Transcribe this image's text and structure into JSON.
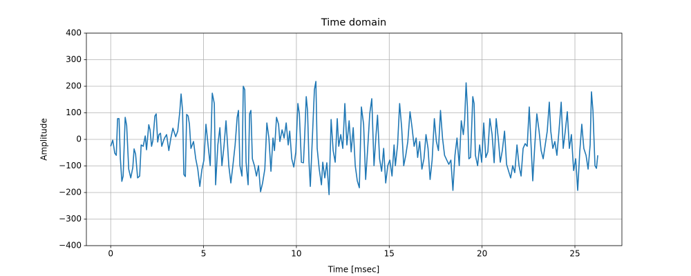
{
  "chart_data": {
    "type": "line",
    "title": "Time domain",
    "x_label": "Time [msec]",
    "y_label": "Amplitude",
    "color": "#1f77b4",
    "grid": true,
    "xlim": [
      -1.31,
      27.53
    ],
    "ylim": [
      -400,
      400
    ],
    "xticks": [
      0,
      5,
      10,
      15,
      20,
      25
    ],
    "yticks": [
      {
        "value": -400,
        "label": "−400"
      },
      {
        "value": -300,
        "label": "−300"
      },
      {
        "value": -200,
        "label": "−200"
      },
      {
        "value": -100,
        "label": "−100"
      },
      0,
      100,
      200,
      300,
      400
    ],
    "x": [
      0,
      0.11,
      0.22,
      0.3,
      0.37,
      0.45,
      0.52,
      0.6,
      0.67,
      0.78,
      0.86,
      0.97,
      1.08,
      1.19,
      1.26,
      1.34,
      1.45,
      1.56,
      1.64,
      1.75,
      1.86,
      1.93,
      2.05,
      2.12,
      2.2,
      2.27,
      2.38,
      2.45,
      2.53,
      2.6,
      2.68,
      2.75,
      2.83,
      2.9,
      3.01,
      3.13,
      3.24,
      3.35,
      3.5,
      3.61,
      3.72,
      3.79,
      3.87,
      3.94,
      4.02,
      4.09,
      4.17,
      4.24,
      4.32,
      4.39,
      4.46,
      4.58,
      4.69,
      4.8,
      4.91,
      5.02,
      5.13,
      5.25,
      5.36,
      5.47,
      5.58,
      5.65,
      5.77,
      5.88,
      5.99,
      6.1,
      6.21,
      6.29,
      6.36,
      6.47,
      6.58,
      6.7,
      6.81,
      6.88,
      6.96,
      7.07,
      7.14,
      7.22,
      7.29,
      7.4,
      7.48,
      7.55,
      7.63,
      7.74,
      7.85,
      7.96,
      8.07,
      8.18,
      8.3,
      8.41,
      8.52,
      8.63,
      8.74,
      8.82,
      8.93,
      9.04,
      9.11,
      9.23,
      9.34,
      9.45,
      9.56,
      9.64,
      9.75,
      9.86,
      9.97,
      10.08,
      10.16,
      10.27,
      10.38,
      10.45,
      10.53,
      10.6,
      10.68,
      10.75,
      10.86,
      10.97,
      11.05,
      11.12,
      11.23,
      11.35,
      11.42,
      11.53,
      11.64,
      11.76,
      11.87,
      11.98,
      12.09,
      12.2,
      12.28,
      12.39,
      12.5,
      12.61,
      12.72,
      12.84,
      12.95,
      13.06,
      13.17,
      13.28,
      13.39,
      13.5,
      13.62,
      13.73,
      13.84,
      13.95,
      14.06,
      14.18,
      14.29,
      14.37,
      14.48,
      14.59,
      14.7,
      14.81,
      14.92,
      15.03,
      15.15,
      15.26,
      15.33,
      15.45,
      15.56,
      15.67,
      15.78,
      15.89,
      16.0,
      16.12,
      16.23,
      16.34,
      16.45,
      16.53,
      16.64,
      16.76,
      16.87,
      16.98,
      17.09,
      17.2,
      17.31,
      17.43,
      17.54,
      17.65,
      17.76,
      17.87,
      17.98,
      18.1,
      18.21,
      18.32,
      18.43,
      18.54,
      18.65,
      18.77,
      18.88,
      18.99,
      19.06,
      19.14,
      19.21,
      19.29,
      19.38,
      19.5,
      19.57,
      19.64,
      19.76,
      19.87,
      19.98,
      20.09,
      20.2,
      20.31,
      20.42,
      20.54,
      20.65,
      20.76,
      20.87,
      20.98,
      21.09,
      21.21,
      21.32,
      21.43,
      21.54,
      21.65,
      21.76,
      21.88,
      21.99,
      22.1,
      22.21,
      22.32,
      22.43,
      22.54,
      22.62,
      22.73,
      22.84,
      22.95,
      23.07,
      23.18,
      23.29,
      23.4,
      23.51,
      23.62,
      23.7,
      23.81,
      23.92,
      24.03,
      24.14,
      24.26,
      24.37,
      24.48,
      24.59,
      24.7,
      24.81,
      24.93,
      25.04,
      25.15,
      25.26,
      25.37,
      25.48,
      25.6,
      25.71,
      25.82,
      25.89,
      25.97,
      26.08,
      26.16,
      26.23
    ],
    "values": [
      -26,
      -3,
      -52,
      -60,
      78,
      78,
      -73,
      -158,
      -138,
      83,
      52,
      -112,
      -145,
      -106,
      -36,
      -55,
      -145,
      -138,
      -21,
      -26,
      13,
      -39,
      55,
      36,
      -26,
      -5,
      88,
      96,
      -10,
      18,
      23,
      -26,
      -8,
      5,
      18,
      -42,
      5,
      42,
      10,
      31,
      104,
      171,
      109,
      -132,
      -140,
      94,
      88,
      57,
      -34,
      -21,
      -8,
      -73,
      -112,
      -177,
      -114,
      -78,
      57,
      -26,
      -99,
      174,
      135,
      -171,
      -21,
      44,
      -99,
      -26,
      70,
      -16,
      -99,
      -164,
      -99,
      -21,
      83,
      109,
      -99,
      -138,
      200,
      187,
      -86,
      -171,
      96,
      109,
      -73,
      -99,
      -138,
      -99,
      -197,
      -164,
      -112,
      62,
      5,
      -120,
      5,
      -42,
      83,
      57,
      -8,
      36,
      5,
      62,
      -21,
      31,
      -73,
      -104,
      -47,
      135,
      96,
      -86,
      -88,
      18,
      161,
      109,
      -86,
      -177,
      5,
      187,
      218,
      -34,
      -112,
      -171,
      -86,
      -145,
      -88,
      -208,
      75,
      -42,
      -86,
      78,
      -26,
      18,
      -34,
      135,
      -21,
      70,
      -47,
      44,
      -99,
      -156,
      -182,
      122,
      57,
      -151,
      -34,
      96,
      153,
      -99,
      18,
      91,
      -73,
      -120,
      -34,
      -164,
      -99,
      -78,
      -138,
      -21,
      -99,
      -21,
      135,
      44,
      -99,
      -60,
      -8,
      104,
      44,
      -26,
      5,
      -68,
      -8,
      -112,
      -73,
      18,
      -34,
      -151,
      -78,
      78,
      -8,
      -42,
      109,
      5,
      -60,
      -78,
      -94,
      -78,
      -192,
      -60,
      5,
      -99,
      70,
      18,
      70,
      213,
      122,
      -73,
      -68,
      161,
      135,
      -60,
      -99,
      -21,
      -86,
      62,
      -68,
      -47,
      78,
      18,
      -88,
      78,
      5,
      -86,
      -42,
      31,
      -94,
      -120,
      -145,
      -99,
      -125,
      -21,
      -99,
      -138,
      -34,
      -16,
      -26,
      122,
      5,
      -156,
      -21,
      96,
      31,
      -42,
      -73,
      -21,
      31,
      140,
      31,
      -34,
      -8,
      -60,
      31,
      140,
      -34,
      31,
      104,
      -34,
      18,
      -117,
      -73,
      -192,
      -47,
      57,
      -34,
      -60,
      -112,
      -21,
      179,
      109,
      -99,
      -109,
      -60
    ]
  }
}
